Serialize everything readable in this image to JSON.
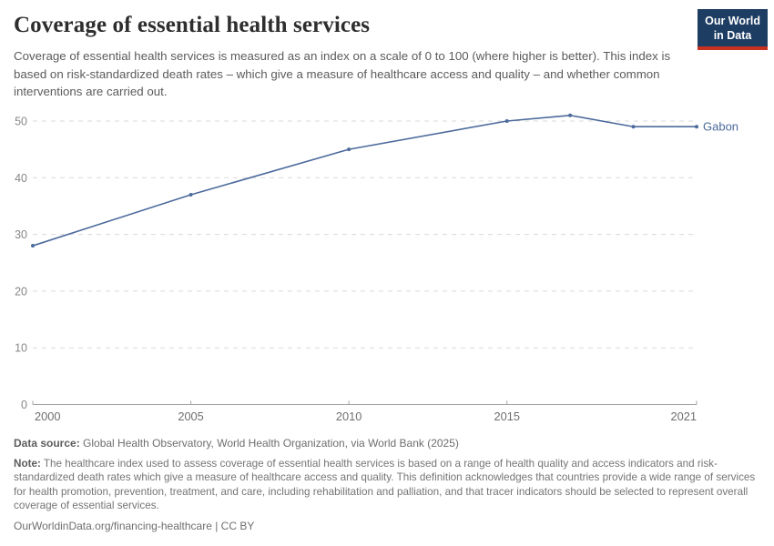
{
  "header": {
    "title": "Coverage of essential health services",
    "subtitle": "Coverage of essential health services is measured as an index on a scale of 0 to 100 (where higher is better). This index is based on risk-standardized death rates – which give a measure of healthcare access and quality – and whether common interventions are carried out.",
    "logo": {
      "line1": "Our World",
      "line2": "in Data",
      "bg_color": "#1d3d63",
      "accent_color": "#c5301f"
    }
  },
  "chart_data": {
    "type": "line",
    "title": "Coverage of essential health services",
    "xlabel": "",
    "ylabel": "",
    "xlim": [
      2000,
      2021
    ],
    "ylim": [
      0,
      51
    ],
    "x_ticks": [
      2000,
      2005,
      2010,
      2015,
      2021
    ],
    "y_ticks": [
      0,
      10,
      20,
      30,
      40,
      50
    ],
    "grid": "horizontal-dashed",
    "legend_position": "end-of-line-label",
    "series": [
      {
        "name": "Gabon",
        "color": "#4c6a9c",
        "x": [
          2000,
          2005,
          2010,
          2015,
          2017,
          2019,
          2021
        ],
        "y": [
          28,
          37,
          45,
          50,
          51,
          49,
          49
        ]
      }
    ],
    "style": {
      "gridline_color": "#dadada",
      "axis_color": "#a5a5a5",
      "y_tick_label_color": "#878787",
      "x_tick_label_color": "#6e6e6e"
    }
  },
  "footer": {
    "source_label": "Data source:",
    "source_text": " Global Health Observatory, World Health Organization, via World Bank (2025)",
    "note_label": "Note:",
    "note_text": " The healthcare index used to assess coverage of essential health services is based on a range of health quality and access indicators and risk-standardized death rates which give a measure of healthcare access and quality. This definition acknowledges that countries provide a wide range of services for health promotion, prevention, treatment, and care, including rehabilitation and palliation, and that tracer indicators should be selected to represent overall coverage of essential services.",
    "citation": "OurWorldinData.org/financing-healthcare | CC BY"
  }
}
